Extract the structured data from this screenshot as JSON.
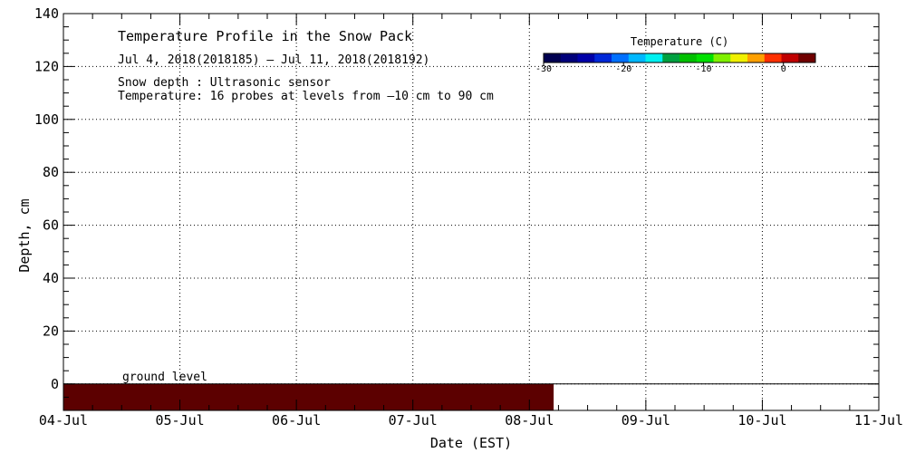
{
  "chart_data": {
    "type": "heatmap",
    "title": "Temperature Profile in the Snow Pack",
    "date_range": "Jul  4, 2018(2018185) — Jul 11, 2018(2018192)",
    "notes": [
      "Snow depth : Ultrasonic sensor",
      "Temperature: 16 probes at levels from —10 cm to 90 cm"
    ],
    "xlabel": "Date (EST)",
    "ylabel": "Depth, cm",
    "x_categories": [
      "04-Jul",
      "05-Jul",
      "06-Jul",
      "07-Jul",
      "08-Jul",
      "09-Jul",
      "10-Jul",
      "11-Jul"
    ],
    "xlim": [
      "2018-07-04",
      "2018-07-11"
    ],
    "ylim": [
      -10,
      140
    ],
    "y_ticks": [
      0,
      20,
      40,
      60,
      80,
      100,
      120,
      140
    ],
    "grid": true,
    "ground_level_label": "ground level",
    "ground_level_depth": 0,
    "temperature_band": {
      "x_start": "2018-07-04T00:00",
      "x_end": "2018-07-08T05:00",
      "y_start": -10,
      "y_end": 0,
      "color": "#5c0000"
    },
    "colorbar": {
      "title": "Temperature (C)",
      "ticks": [
        -30,
        -20,
        -10,
        0
      ],
      "range": [
        -30,
        4
      ],
      "colors": [
        "#000050",
        "#00007a",
        "#0000a8",
        "#0028d8",
        "#0070ff",
        "#00b8ff",
        "#00f0f0",
        "#00a040",
        "#00c000",
        "#00e000",
        "#80f000",
        "#f0f000",
        "#ffa000",
        "#ff3000",
        "#c00000",
        "#700000"
      ]
    }
  }
}
